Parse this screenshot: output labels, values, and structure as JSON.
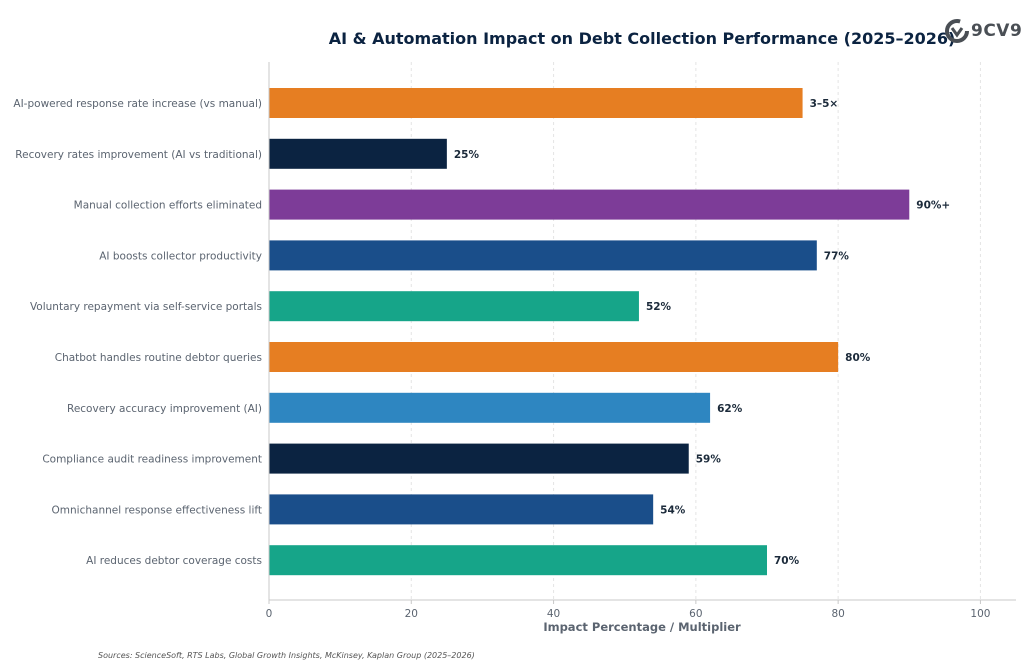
{
  "chart_data": {
    "type": "bar",
    "orientation": "horizontal",
    "title": "AI & Automation Impact on Debt Collection Performance (2025–2026)",
    "xlabel": "Impact Percentage / Multiplier",
    "ylabel": "",
    "xlim": [
      0,
      105
    ],
    "xticks": [
      0,
      20,
      40,
      60,
      80,
      100
    ],
    "grid": "vertical dashed",
    "source": "Sources: ScienceSoft, RTS Labs, Global Growth Insights, McKinsey, Kaplan Group (2025–2026)",
    "categories": [
      "AI-powered response rate increase (vs manual)",
      "Recovery rates improvement (AI vs traditional)",
      "Manual collection efforts eliminated",
      "AI boosts collector productivity",
      "Voluntary repayment via self-service portals",
      "Chatbot handles routine debtor queries",
      "Recovery accuracy improvement (AI)",
      "Compliance audit readiness improvement",
      "Omnichannel response effectiveness lift",
      "AI reduces debtor coverage costs"
    ],
    "values": [
      75,
      25,
      90,
      77,
      52,
      80,
      62,
      59,
      54,
      70
    ],
    "data_labels": [
      "3–5×",
      "25%",
      "90%+",
      "77%",
      "52%",
      "80%",
      "62%",
      "59%",
      "54%",
      "70%"
    ],
    "colors": [
      "#e67e22",
      "#0b2341",
      "#7d3c98",
      "#1a4e8a",
      "#16a589",
      "#e67e22",
      "#2e86c1",
      "#0b2341",
      "#1a4e8a",
      "#16a589"
    ]
  },
  "logo": {
    "text": "9CV9"
  }
}
